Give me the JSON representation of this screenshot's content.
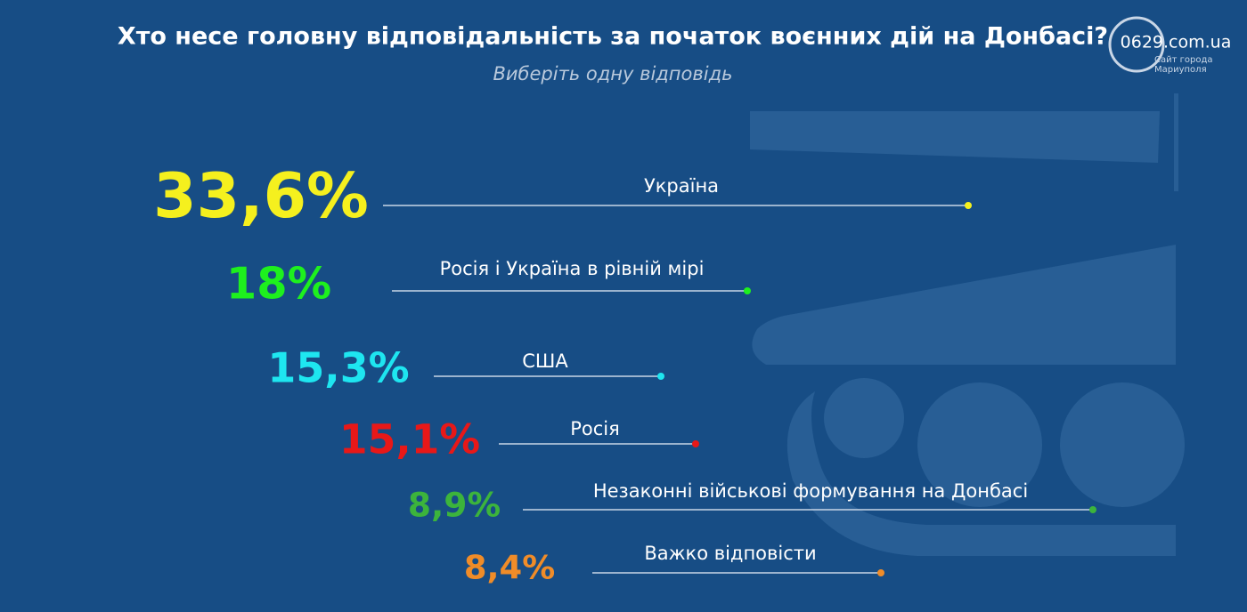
{
  "chart_data": {
    "type": "infographic",
    "title": "Хто несе головну відповідальність за початок воєнних дій на Донбасі?",
    "subtitle": "Виберіть одну відповідь",
    "categories": [
      "Україна",
      "Росія і Україна в рівній мірі",
      "США",
      "Росія",
      "Незаконні військові формування на Донбасі",
      "Важко відповісти"
    ],
    "values": [
      33.6,
      18,
      15.3,
      15.1,
      8.9,
      8.4
    ],
    "value_labels": [
      "33,6%",
      "18%",
      "15,3%",
      "15,1%",
      "8,9%",
      "8,4%"
    ],
    "colors": [
      "#f5f01e",
      "#1ef01e",
      "#1ee6f0",
      "#e81818",
      "#3cb43c",
      "#f08c28"
    ]
  },
  "watermark": {
    "site": "0629.com.ua",
    "caption_1": "Сайт города",
    "caption_2": "Мариуполя"
  }
}
